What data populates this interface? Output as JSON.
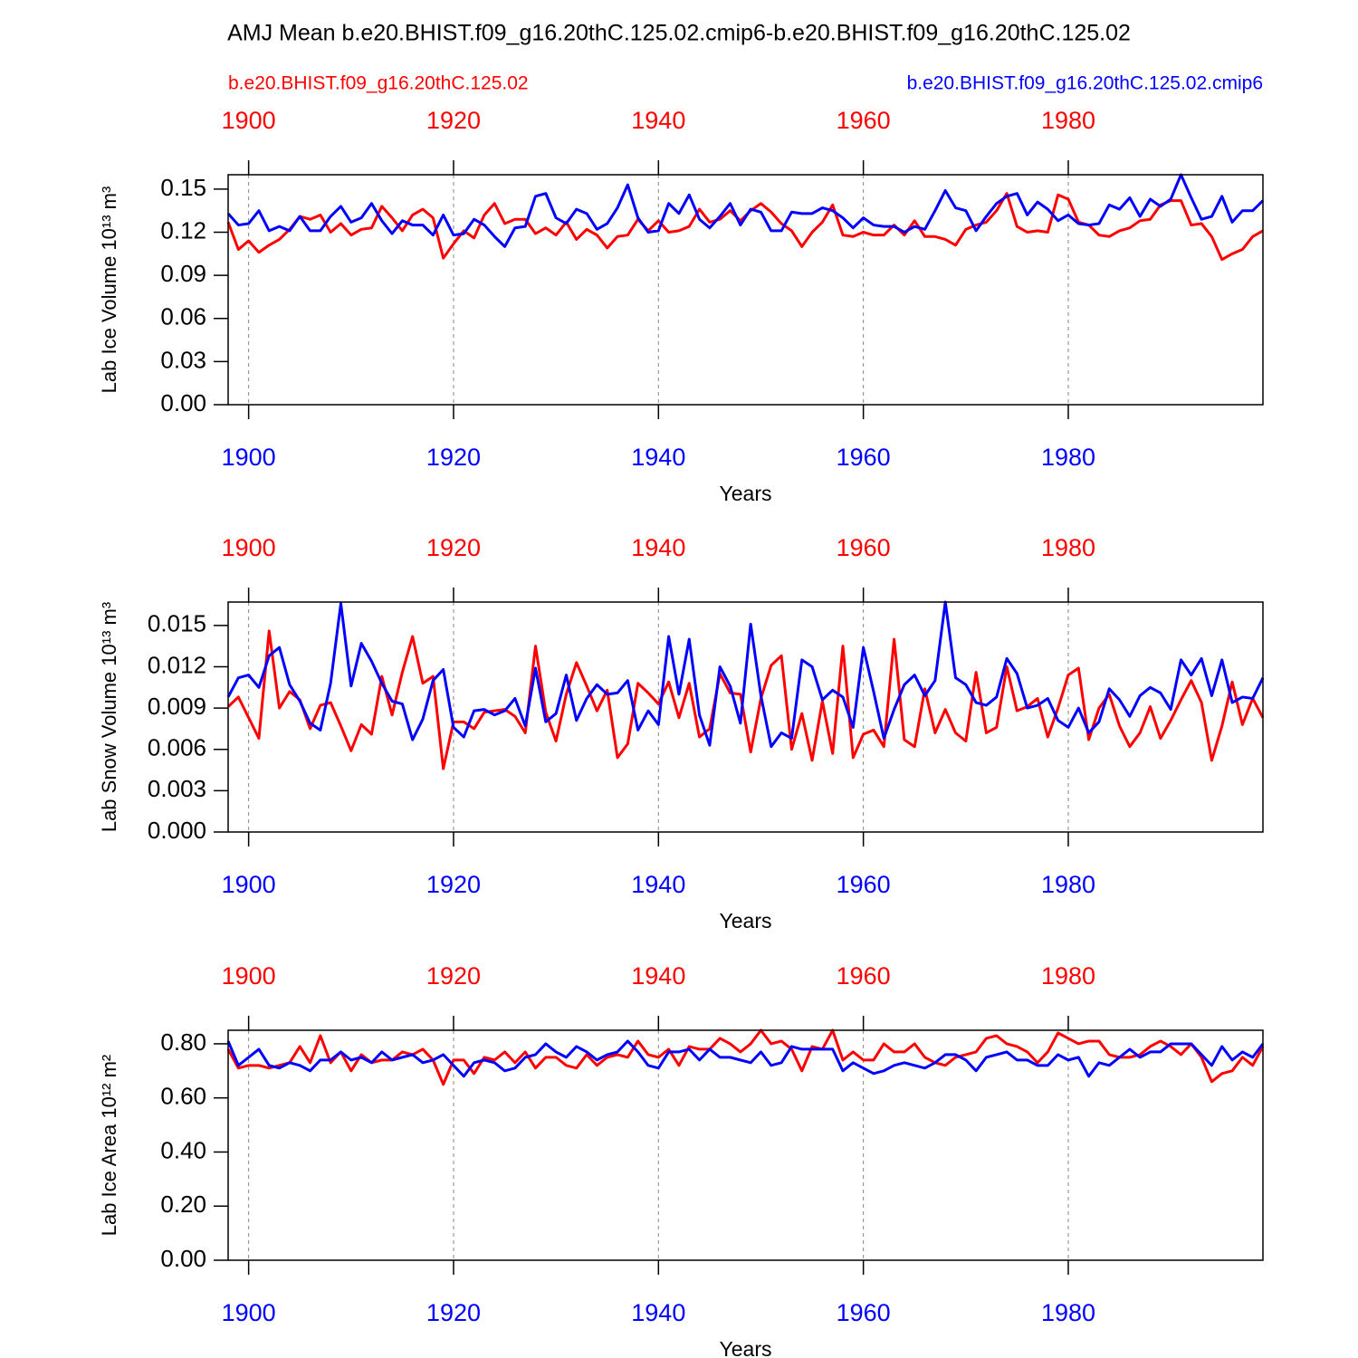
{
  "title": "AMJ Mean b.e20.BHIST.f09_g16.20thC.125.02.cmip6-b.e20.BHIST.f09_g16.20thC.125.02",
  "chart_data": [
    {
      "type": "line",
      "xlabel": "Years",
      "ylabel": "Lab Ice Volume 10¹³ m³",
      "x_grid": true,
      "x": [
        1898,
        1899,
        1900,
        1901,
        1902,
        1903,
        1904,
        1905,
        1906,
        1907,
        1908,
        1909,
        1910,
        1911,
        1912,
        1913,
        1914,
        1915,
        1916,
        1917,
        1918,
        1919,
        1920,
        1921,
        1922,
        1923,
        1924,
        1925,
        1926,
        1927,
        1928,
        1929,
        1930,
        1931,
        1932,
        1933,
        1934,
        1935,
        1936,
        1937,
        1938,
        1939,
        1940,
        1941,
        1942,
        1943,
        1944,
        1945,
        1946,
        1947,
        1948,
        1949,
        1950,
        1951,
        1952,
        1953,
        1954,
        1955,
        1956,
        1957,
        1958,
        1959,
        1960,
        1961,
        1962,
        1963,
        1964,
        1965,
        1966,
        1967,
        1968,
        1969,
        1970,
        1971,
        1972,
        1973,
        1974,
        1975,
        1976,
        1977,
        1978,
        1979,
        1980,
        1981,
        1982,
        1983,
        1984,
        1985,
        1986,
        1987,
        1988,
        1989,
        1990,
        1991,
        1992,
        1993,
        1994,
        1995,
        1996,
        1997,
        1998,
        1999
      ],
      "xlim": [
        1898,
        1999
      ],
      "xticks": [
        1900,
        1920,
        1940,
        1960,
        1980
      ],
      "ylim": [
        0,
        0.16
      ],
      "yticks": [
        {
          "value": 0,
          "label": "0.00"
        },
        0.03,
        0.06,
        0.09,
        0.12,
        0.15
      ],
      "series": [
        {
          "name": "b.e20.BHIST.f09_g16.20thC.125.02",
          "color": "#ff0000",
          "values": [
            0.127,
            0.108,
            0.114,
            0.106,
            0.111,
            0.115,
            0.122,
            0.131,
            0.129,
            0.132,
            0.12,
            0.126,
            0.118,
            0.122,
            0.123,
            0.138,
            0.13,
            0.121,
            0.132,
            0.136,
            0.13,
            0.102,
            0.112,
            0.121,
            0.116,
            0.132,
            0.14,
            0.126,
            0.129,
            0.129,
            0.119,
            0.123,
            0.118,
            0.127,
            0.115,
            0.122,
            0.118,
            0.109,
            0.117,
            0.118,
            0.129,
            0.121,
            0.128,
            0.12,
            0.121,
            0.124,
            0.136,
            0.127,
            0.129,
            0.135,
            0.128,
            0.135,
            0.14,
            0.134,
            0.126,
            0.121,
            0.11,
            0.12,
            0.127,
            0.139,
            0.118,
            0.117,
            0.12,
            0.118,
            0.118,
            0.125,
            0.118,
            0.128,
            0.117,
            0.117,
            0.115,
            0.111,
            0.122,
            0.125,
            0.127,
            0.135,
            0.147,
            0.124,
            0.12,
            0.121,
            0.12,
            0.146,
            0.143,
            0.127,
            0.125,
            0.118,
            0.117,
            0.121,
            0.123,
            0.128,
            0.129,
            0.139,
            0.142,
            0.142,
            0.125,
            0.126,
            0.117,
            0.101,
            0.105,
            0.108,
            0.117,
            0.121
          ]
        },
        {
          "name": "b.e20.BHIST.f09_g16.20thC.125.02.cmip6",
          "color": "#0000ff",
          "values": [
            0.133,
            0.125,
            0.126,
            0.135,
            0.121,
            0.124,
            0.121,
            0.131,
            0.121,
            0.121,
            0.131,
            0.138,
            0.127,
            0.13,
            0.14,
            0.128,
            0.119,
            0.128,
            0.125,
            0.125,
            0.118,
            0.132,
            0.118,
            0.119,
            0.129,
            0.125,
            0.117,
            0.11,
            0.123,
            0.124,
            0.145,
            0.147,
            0.13,
            0.126,
            0.136,
            0.133,
            0.122,
            0.126,
            0.137,
            0.153,
            0.13,
            0.12,
            0.121,
            0.14,
            0.133,
            0.146,
            0.129,
            0.123,
            0.131,
            0.14,
            0.125,
            0.136,
            0.134,
            0.121,
            0.121,
            0.134,
            0.133,
            0.133,
            0.137,
            0.135,
            0.13,
            0.123,
            0.13,
            0.125,
            0.124,
            0.124,
            0.12,
            0.124,
            0.122,
            0.135,
            0.149,
            0.137,
            0.135,
            0.121,
            0.131,
            0.14,
            0.145,
            0.147,
            0.132,
            0.141,
            0.136,
            0.128,
            0.132,
            0.126,
            0.125,
            0.126,
            0.139,
            0.136,
            0.144,
            0.131,
            0.143,
            0.138,
            0.143,
            0.16,
            0.144,
            0.129,
            0.131,
            0.145,
            0.127,
            0.135,
            0.135,
            0.142
          ]
        }
      ]
    },
    {
      "type": "line",
      "xlabel": "Years",
      "ylabel": "Lab Snow Volume 10¹³ m³",
      "x_grid": true,
      "x": [
        1898,
        1899,
        1900,
        1901,
        1902,
        1903,
        1904,
        1905,
        1906,
        1907,
        1908,
        1909,
        1910,
        1911,
        1912,
        1913,
        1914,
        1915,
        1916,
        1917,
        1918,
        1919,
        1920,
        1921,
        1922,
        1923,
        1924,
        1925,
        1926,
        1927,
        1928,
        1929,
        1930,
        1931,
        1932,
        1933,
        1934,
        1935,
        1936,
        1937,
        1938,
        1939,
        1940,
        1941,
        1942,
        1943,
        1944,
        1945,
        1946,
        1947,
        1948,
        1949,
        1950,
        1951,
        1952,
        1953,
        1954,
        1955,
        1956,
        1957,
        1958,
        1959,
        1960,
        1961,
        1962,
        1963,
        1964,
        1965,
        1966,
        1967,
        1968,
        1969,
        1970,
        1971,
        1972,
        1973,
        1974,
        1975,
        1976,
        1977,
        1978,
        1979,
        1980,
        1981,
        1982,
        1983,
        1984,
        1985,
        1986,
        1987,
        1988,
        1989,
        1990,
        1991,
        1992,
        1993,
        1994,
        1995,
        1996,
        1997,
        1998,
        1999
      ],
      "xlim": [
        1898,
        1999
      ],
      "xticks": [
        1900,
        1920,
        1940,
        1960,
        1980
      ],
      "ylim": [
        0,
        0.0167
      ],
      "yticks": [
        {
          "value": 0,
          "label": "0.000"
        },
        0.003,
        0.006,
        0.009,
        0.012,
        0.015
      ],
      "series": [
        {
          "color": "#ff0000",
          "values": [
            0.0091,
            0.0098,
            0.0083,
            0.0068,
            0.0146,
            0.009,
            0.0102,
            0.0096,
            0.0075,
            0.0092,
            0.0094,
            0.0077,
            0.0059,
            0.0078,
            0.0071,
            0.0113,
            0.0085,
            0.0116,
            0.0142,
            0.0108,
            0.0113,
            0.0046,
            0.008,
            0.008,
            0.0075,
            0.0087,
            0.0088,
            0.0089,
            0.0084,
            0.0072,
            0.0135,
            0.0087,
            0.0066,
            0.01,
            0.0123,
            0.0106,
            0.0088,
            0.0103,
            0.0054,
            0.0064,
            0.0108,
            0.0101,
            0.0093,
            0.0109,
            0.0083,
            0.0108,
            0.0069,
            0.0075,
            0.0115,
            0.0101,
            0.01,
            0.0058,
            0.0097,
            0.0121,
            0.0128,
            0.006,
            0.0086,
            0.0052,
            0.0095,
            0.0057,
            0.0135,
            0.0054,
            0.0071,
            0.0074,
            0.0062,
            0.014,
            0.0067,
            0.0062,
            0.0104,
            0.0072,
            0.0089,
            0.0072,
            0.0066,
            0.0116,
            0.0072,
            0.0076,
            0.012,
            0.0088,
            0.0091,
            0.0097,
            0.0069,
            0.009,
            0.0114,
            0.0119,
            0.0067,
            0.009,
            0.01,
            0.0077,
            0.0062,
            0.0072,
            0.0091,
            0.0068,
            0.0081,
            0.0096,
            0.011,
            0.0094,
            0.0052,
            0.0077,
            0.0109,
            0.0078,
            0.0097,
            0.0083
          ]
        },
        {
          "color": "#0000ff",
          "values": [
            0.0098,
            0.0112,
            0.0114,
            0.0105,
            0.0128,
            0.0134,
            0.0107,
            0.0095,
            0.0079,
            0.0074,
            0.0108,
            0.0166,
            0.0106,
            0.0137,
            0.0124,
            0.0108,
            0.0095,
            0.0093,
            0.0067,
            0.0082,
            0.011,
            0.0118,
            0.0076,
            0.0069,
            0.0088,
            0.0089,
            0.0085,
            0.0088,
            0.0097,
            0.0077,
            0.0119,
            0.008,
            0.0086,
            0.0114,
            0.0081,
            0.0097,
            0.0107,
            0.01,
            0.0101,
            0.011,
            0.0074,
            0.0088,
            0.0078,
            0.0142,
            0.01,
            0.014,
            0.0085,
            0.0063,
            0.012,
            0.0106,
            0.0079,
            0.0151,
            0.0099,
            0.0062,
            0.0072,
            0.0068,
            0.0125,
            0.012,
            0.0096,
            0.0103,
            0.0098,
            0.0076,
            0.0134,
            0.0102,
            0.0068,
            0.0089,
            0.0107,
            0.0114,
            0.0099,
            0.011,
            0.0167,
            0.0112,
            0.0107,
            0.0094,
            0.0092,
            0.0098,
            0.0126,
            0.0115,
            0.009,
            0.0092,
            0.0097,
            0.0081,
            0.0076,
            0.009,
            0.0072,
            0.008,
            0.0104,
            0.0096,
            0.0084,
            0.0099,
            0.0105,
            0.0101,
            0.0089,
            0.0125,
            0.0114,
            0.0126,
            0.0099,
            0.0125,
            0.0094,
            0.0098,
            0.0097,
            0.0112
          ]
        }
      ]
    },
    {
      "type": "line",
      "xlabel": "Years",
      "ylabel": "Lab Ice Area 10¹² m²",
      "x_grid": true,
      "x": [
        1898,
        1899,
        1900,
        1901,
        1902,
        1903,
        1904,
        1905,
        1906,
        1907,
        1908,
        1909,
        1910,
        1911,
        1912,
        1913,
        1914,
        1915,
        1916,
        1917,
        1918,
        1919,
        1920,
        1921,
        1922,
        1923,
        1924,
        1925,
        1926,
        1927,
        1928,
        1929,
        1930,
        1931,
        1932,
        1933,
        1934,
        1935,
        1936,
        1937,
        1938,
        1939,
        1940,
        1941,
        1942,
        1943,
        1944,
        1945,
        1946,
        1947,
        1948,
        1949,
        1950,
        1951,
        1952,
        1953,
        1954,
        1955,
        1956,
        1957,
        1958,
        1959,
        1960,
        1961,
        1962,
        1963,
        1964,
        1965,
        1966,
        1967,
        1968,
        1969,
        1970,
        1971,
        1972,
        1973,
        1974,
        1975,
        1976,
        1977,
        1978,
        1979,
        1980,
        1981,
        1982,
        1983,
        1984,
        1985,
        1986,
        1987,
        1988,
        1989,
        1990,
        1991,
        1992,
        1993,
        1994,
        1995,
        1996,
        1997,
        1998,
        1999
      ],
      "xlim": [
        1898,
        1999
      ],
      "xticks": [
        1900,
        1920,
        1940,
        1960,
        1980
      ],
      "ylim": [
        0,
        0.85
      ],
      "yticks": [
        {
          "value": 0,
          "label": "0.00"
        },
        {
          "value": 0.2,
          "label": "0.20"
        },
        {
          "value": 0.4,
          "label": "0.40"
        },
        {
          "value": 0.6,
          "label": "0.60"
        },
        {
          "value": 0.8,
          "label": "0.80"
        }
      ],
      "series": [
        {
          "color": "#ff0000",
          "values": [
            0.78,
            0.71,
            0.72,
            0.72,
            0.71,
            0.72,
            0.73,
            0.79,
            0.73,
            0.83,
            0.73,
            0.77,
            0.7,
            0.76,
            0.73,
            0.74,
            0.74,
            0.77,
            0.76,
            0.78,
            0.74,
            0.65,
            0.74,
            0.74,
            0.69,
            0.75,
            0.74,
            0.77,
            0.73,
            0.77,
            0.71,
            0.75,
            0.75,
            0.72,
            0.71,
            0.76,
            0.72,
            0.75,
            0.76,
            0.75,
            0.81,
            0.76,
            0.75,
            0.78,
            0.72,
            0.79,
            0.78,
            0.78,
            0.82,
            0.8,
            0.77,
            0.8,
            0.85,
            0.8,
            0.81,
            0.78,
            0.7,
            0.79,
            0.78,
            0.85,
            0.74,
            0.77,
            0.74,
            0.74,
            0.8,
            0.77,
            0.77,
            0.8,
            0.75,
            0.73,
            0.72,
            0.75,
            0.76,
            0.77,
            0.82,
            0.83,
            0.8,
            0.79,
            0.77,
            0.73,
            0.77,
            0.84,
            0.82,
            0.8,
            0.81,
            0.81,
            0.76,
            0.75,
            0.75,
            0.76,
            0.79,
            0.81,
            0.79,
            0.76,
            0.8,
            0.75,
            0.66,
            0.69,
            0.7,
            0.75,
            0.72,
            0.79
          ]
        },
        {
          "color": "#0000ff",
          "values": [
            0.81,
            0.72,
            0.75,
            0.78,
            0.72,
            0.71,
            0.73,
            0.72,
            0.7,
            0.74,
            0.74,
            0.77,
            0.74,
            0.75,
            0.73,
            0.77,
            0.74,
            0.75,
            0.76,
            0.73,
            0.74,
            0.76,
            0.72,
            0.68,
            0.73,
            0.74,
            0.73,
            0.7,
            0.71,
            0.75,
            0.76,
            0.8,
            0.77,
            0.75,
            0.79,
            0.77,
            0.74,
            0.76,
            0.77,
            0.81,
            0.77,
            0.72,
            0.71,
            0.77,
            0.77,
            0.78,
            0.74,
            0.78,
            0.75,
            0.75,
            0.74,
            0.73,
            0.77,
            0.72,
            0.73,
            0.79,
            0.78,
            0.78,
            0.78,
            0.78,
            0.7,
            0.73,
            0.71,
            0.69,
            0.7,
            0.72,
            0.73,
            0.72,
            0.71,
            0.73,
            0.76,
            0.76,
            0.74,
            0.7,
            0.75,
            0.76,
            0.77,
            0.74,
            0.74,
            0.72,
            0.72,
            0.76,
            0.74,
            0.75,
            0.68,
            0.73,
            0.72,
            0.75,
            0.78,
            0.75,
            0.77,
            0.77,
            0.8,
            0.8,
            0.8,
            0.76,
            0.72,
            0.79,
            0.74,
            0.77,
            0.75,
            0.8
          ]
        }
      ]
    }
  ]
}
